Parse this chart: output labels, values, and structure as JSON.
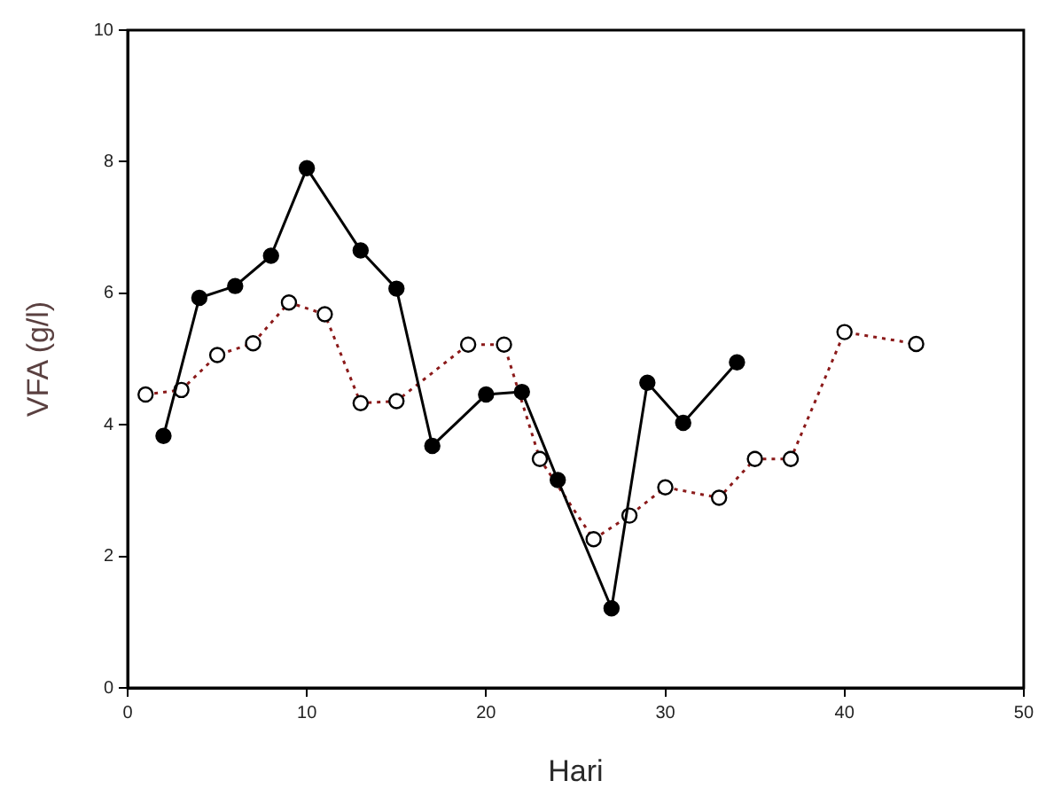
{
  "chart_data": {
    "type": "line",
    "xlabel": "Hari",
    "ylabel": "VFA (g/l)",
    "xlim": [
      0,
      50
    ],
    "xticks": [
      0,
      10,
      20,
      30,
      40,
      50
    ],
    "ylim": [
      0,
      10
    ],
    "yticks": [
      0,
      2,
      4,
      6,
      8,
      10
    ],
    "grid": false,
    "legend": false,
    "marker": "circle",
    "series": [
      {
        "color": "#000000",
        "line_style": "solid",
        "x": [
          2,
          4,
          6,
          8,
          10,
          13,
          15,
          17,
          20,
          22,
          24,
          27,
          29,
          31,
          34
        ],
        "values": [
          3.83,
          5.93,
          6.11,
          6.57,
          7.9,
          6.65,
          6.07,
          3.68,
          4.46,
          4.5,
          3.16,
          1.21,
          4.64,
          4.03,
          4.95
        ]
      },
      {
        "color": "#8b1a1a",
        "line_style": "dotted",
        "x": [
          1,
          3,
          5,
          7,
          9,
          11,
          13,
          15,
          19,
          21,
          23,
          26,
          28,
          30,
          33,
          35,
          37,
          40,
          44
        ],
        "values": [
          4.46,
          4.53,
          5.06,
          5.24,
          5.86,
          5.68,
          4.33,
          4.36,
          5.22,
          5.22,
          3.48,
          2.26,
          2.62,
          3.05,
          2.89,
          3.48,
          3.48,
          5.41,
          5.23
        ]
      }
    ]
  }
}
